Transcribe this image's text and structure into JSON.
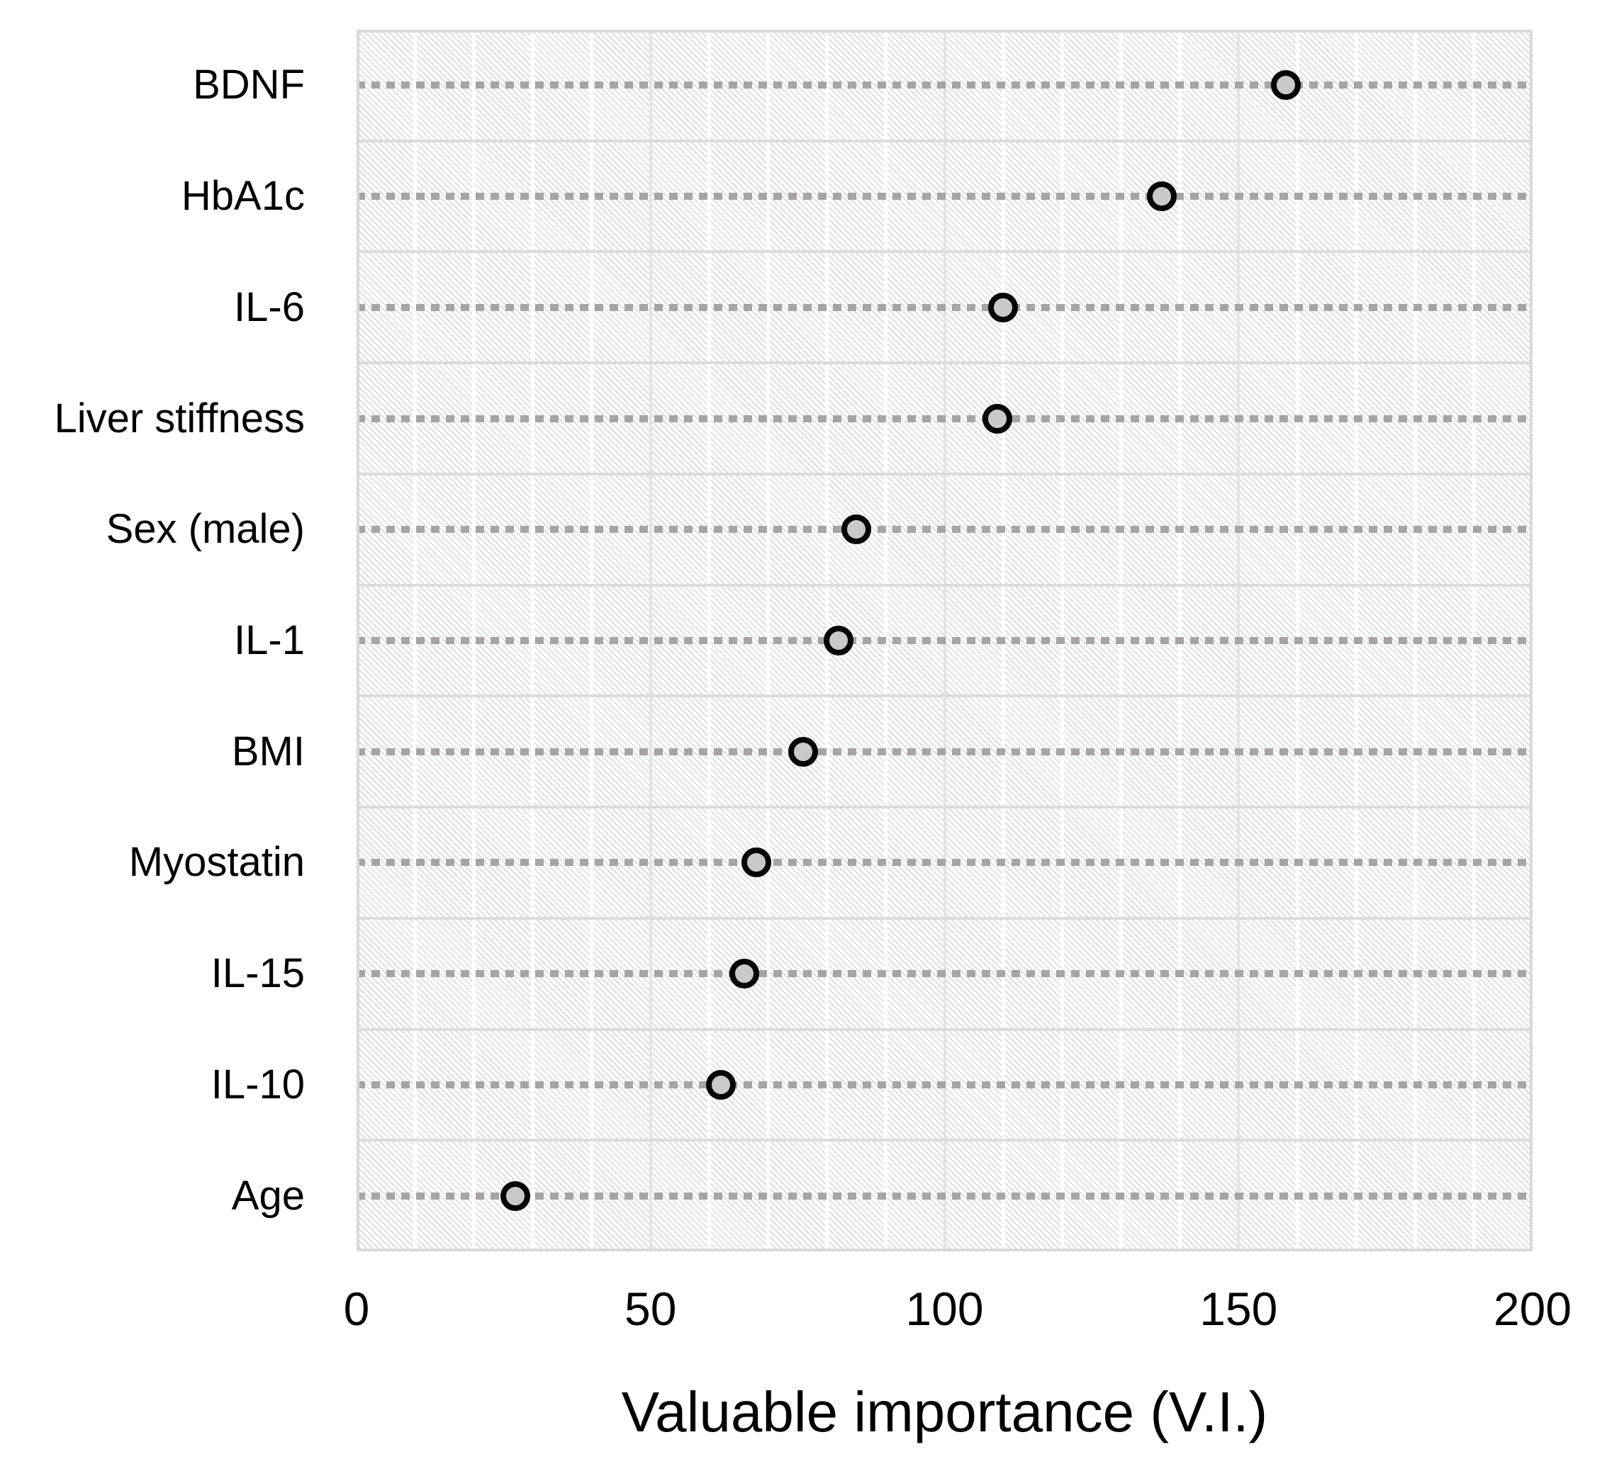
{
  "chart_data": {
    "type": "scatter",
    "variant": "horizontal-dot-plot",
    "title": "",
    "xlabel": "Valuable importance (V.I.)",
    "ylabel": "",
    "categories": [
      "BDNF",
      "HbA1c",
      "IL-6",
      "Liver stiffness",
      "Sex (male)",
      "IL-1",
      "BMI",
      "Myostatin",
      "IL-15",
      "IL-10",
      "Age"
    ],
    "values": [
      158,
      137,
      110,
      109,
      85,
      82,
      76,
      68,
      66,
      62,
      27
    ],
    "xlim": [
      0,
      200
    ],
    "xticks": [
      0,
      50,
      100,
      150,
      200
    ],
    "xtick_labels": [
      "0",
      "50",
      "100",
      "150",
      "200"
    ],
    "minor_grid_step": 10,
    "grid": "on",
    "legend_position": "none",
    "colors": {
      "marker_fill": "#c9c9c9",
      "marker_stroke": "#050505",
      "leader_dash": "#a8a4a4",
      "grid_major": "#e4e4e4",
      "row_separator": "#dcdcdc",
      "plot_border": "#d9d9d9",
      "hatch": "#dedede",
      "text": "#000000"
    }
  }
}
